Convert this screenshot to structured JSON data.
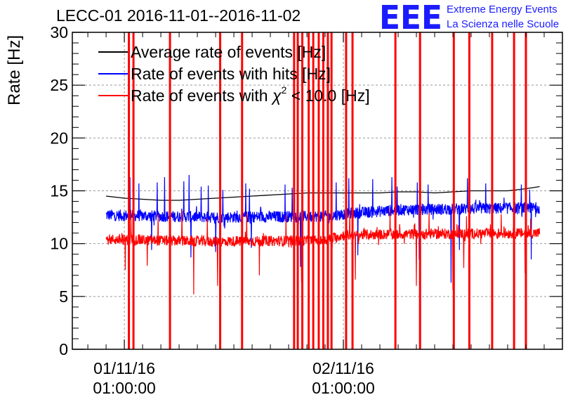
{
  "chart_data": {
    "type": "line",
    "title": "LECC-01 2016-11-01--2016-11-02",
    "ylabel": "Rate [Hz]",
    "xlabel": "",
    "ylim": [
      0,
      30
    ],
    "y_ticks": [
      0,
      5,
      10,
      15,
      20,
      25,
      30
    ],
    "x_ticks": [
      {
        "line1": "01/11/16",
        "line2": "01:00:00",
        "x_hours": 0
      },
      {
        "line1": "02/11/16",
        "line2": "01:00:00",
        "x_hours": 24
      }
    ],
    "xlim_hours": [
      -5.7,
      48
    ],
    "x_unit": "hours since 01/11/16 01:00:00",
    "grid": true,
    "legend_position": "top-left",
    "legend": [
      {
        "name": "Average rate of events [Hz]",
        "color": "#000000"
      },
      {
        "name": "Rate of events with hits [Hz]",
        "color": "#0000ff"
      },
      {
        "name_prefix": "Rate of events with ",
        "name_symbol": "χ",
        "name_sup": "2",
        "name_suffix": " < 10.0 [Hz]",
        "color": "#ff0000"
      }
    ],
    "logo": {
      "mark": "EEE",
      "line1": "Extreme Energy Events",
      "line2": "La Scienza nelle Scuole",
      "color": "#1b1bff"
    },
    "series": [
      {
        "name": "Average rate of events [Hz]",
        "color": "#000000",
        "points": [
          [
            -2,
            14.5
          ],
          [
            0,
            14.3
          ],
          [
            2,
            14.2
          ],
          [
            4,
            14.1
          ],
          [
            6,
            14.1
          ],
          [
            8,
            14.2
          ],
          [
            10,
            14.3
          ],
          [
            12,
            14.4
          ],
          [
            14,
            14.5
          ],
          [
            16,
            14.6
          ],
          [
            18,
            14.7
          ],
          [
            20,
            14.8
          ],
          [
            22,
            14.8
          ],
          [
            24,
            14.8
          ],
          [
            26,
            14.8
          ],
          [
            28,
            14.8
          ],
          [
            30,
            14.9
          ],
          [
            32,
            14.9
          ],
          [
            34,
            14.8
          ],
          [
            36,
            14.9
          ],
          [
            38,
            15.0
          ],
          [
            40,
            15.0
          ],
          [
            42,
            15.0
          ],
          [
            44,
            15.2
          ],
          [
            45.5,
            15.4
          ]
        ]
      },
      {
        "name": "Rate of events with hits [Hz]",
        "color": "#0000ff",
        "start_hours": -2,
        "end_hours": 45.5,
        "baseline": [
          [
            -2,
            12.7
          ],
          [
            10,
            12.5
          ],
          [
            22,
            12.6
          ],
          [
            24,
            12.8
          ],
          [
            30,
            13.2
          ],
          [
            45.5,
            13.4
          ]
        ],
        "noise": 0.55,
        "spikes_up": [
          [
            0.6,
            16.3
          ],
          [
            1.6,
            15.7
          ],
          [
            3.6,
            15.8
          ],
          [
            4.4,
            16.3
          ],
          [
            6.5,
            15.9
          ],
          [
            7.1,
            16.5
          ],
          [
            8.4,
            15.4
          ],
          [
            9.2,
            15.5
          ],
          [
            10.8,
            15.1
          ],
          [
            13.3,
            15.7
          ],
          [
            13.7,
            15.2
          ],
          [
            17.6,
            15.6
          ],
          [
            18.4,
            15.3
          ],
          [
            23.2,
            15.8
          ],
          [
            24.6,
            16.2
          ],
          [
            27.2,
            16.1
          ],
          [
            29.3,
            16.3
          ],
          [
            29.9,
            15.4
          ],
          [
            32.1,
            15.8
          ],
          [
            33.3,
            15.6
          ],
          [
            35.8,
            15.5
          ],
          [
            37.6,
            16.2
          ],
          [
            39.6,
            15.7
          ],
          [
            43.5,
            15.6
          ],
          [
            44.4,
            15.1
          ]
        ],
        "spikes_down": [
          [
            1.0,
            8.5
          ],
          [
            3.0,
            9.4
          ],
          [
            7.3,
            8.7
          ],
          [
            10.0,
            9.2
          ],
          [
            13.9,
            9.6
          ],
          [
            19.3,
            7.8
          ],
          [
            25.6,
            8.9
          ],
          [
            32.3,
            8.5
          ],
          [
            35.8,
            6.3
          ],
          [
            36.7,
            9.4
          ],
          [
            44.6,
            8.5
          ]
        ]
      },
      {
        "name": "Rate of events with χ² < 10.0 [Hz]",
        "color": "#ff0000",
        "start_hours": -2,
        "end_hours": 45.5,
        "baseline": [
          [
            -2,
            10.4
          ],
          [
            10,
            10.2
          ],
          [
            22,
            10.3
          ],
          [
            24,
            10.8
          ],
          [
            30,
            10.9
          ],
          [
            45.5,
            11.0
          ]
        ],
        "noise": 0.5,
        "spikes_up": [
          [
            0.7,
            13.2
          ],
          [
            3.7,
            12.8
          ],
          [
            6.3,
            13.2
          ],
          [
            9.1,
            12.4
          ],
          [
            13.4,
            12.9
          ],
          [
            17.7,
            12.7
          ],
          [
            24.7,
            13.2
          ],
          [
            29.1,
            13.3
          ],
          [
            33.4,
            12.9
          ],
          [
            37.5,
            12.6
          ],
          [
            41.3,
            12.8
          ],
          [
            44.5,
            12.4
          ]
        ],
        "spikes_down": [
          [
            0.1,
            7.5
          ],
          [
            2.5,
            7.9
          ],
          [
            7.6,
            5.2
          ],
          [
            10.2,
            6.0
          ],
          [
            14.8,
            7.0
          ],
          [
            19.4,
            6.3
          ],
          [
            25.3,
            6.6
          ],
          [
            32.0,
            6.0
          ],
          [
            36.0,
            5.6
          ],
          [
            37.2,
            7.7
          ],
          [
            43.9,
            7.2
          ]
        ],
        "full_spikes": [
          0.5,
          1.0,
          5.0,
          10.5,
          12.9,
          18.6,
          19.0,
          19.5,
          20.2,
          20.7,
          21.3,
          21.8,
          22.3,
          22.7,
          24.3,
          25.0,
          29.7,
          32.4,
          36.1,
          37.8,
          40.3,
          42.7,
          44.0
        ]
      }
    ]
  }
}
